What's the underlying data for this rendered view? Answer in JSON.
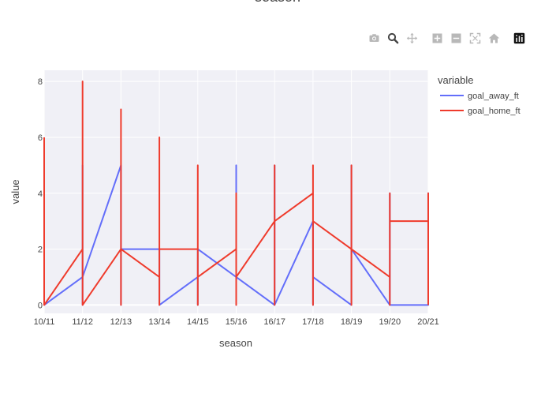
{
  "modebar": {
    "buttons": [
      {
        "name": "camera-icon",
        "active": false
      },
      {
        "name": "zoom-icon",
        "active": true
      },
      {
        "name": "pan-icon",
        "active": false
      },
      {
        "name": "zoom-in-icon",
        "active": false
      },
      {
        "name": "zoom-out-icon",
        "active": false
      },
      {
        "name": "autoscale-icon",
        "active": false
      },
      {
        "name": "reset-axes-icon",
        "active": false
      },
      {
        "name": "plotly-logo-icon",
        "active": false
      }
    ]
  },
  "chart_data": {
    "type": "line",
    "title": "season",
    "xlabel": "season",
    "ylabel": "value",
    "categories": [
      "10/11",
      "11/12",
      "12/13",
      "13/14",
      "14/15",
      "15/16",
      "16/17",
      "17/18",
      "18/19",
      "19/20",
      "20/21"
    ],
    "yticks": [
      0,
      2,
      4,
      6,
      8
    ],
    "ylim": [
      -0.3,
      8.4
    ],
    "grid": true,
    "legend": {
      "title": "variable",
      "placement": "top-right"
    },
    "series": [
      {
        "name": "goal_away_ft",
        "color": "#636efa",
        "points": [
          [
            0,
            0
          ],
          [
            1,
            1
          ],
          [
            1,
            5
          ],
          [
            1,
            0
          ],
          [
            1,
            1
          ],
          [
            2,
            5
          ],
          [
            2,
            0
          ],
          [
            2,
            2
          ],
          [
            3,
            2
          ],
          [
            3,
            0
          ],
          [
            4,
            1
          ],
          [
            4,
            2
          ],
          [
            4,
            0
          ],
          [
            4,
            2
          ],
          [
            5,
            1
          ],
          [
            5,
            5
          ],
          [
            5,
            0
          ],
          [
            5,
            1
          ],
          [
            6,
            0
          ],
          [
            6,
            5
          ],
          [
            6,
            0
          ],
          [
            7,
            3
          ],
          [
            7,
            0
          ],
          [
            7,
            1
          ],
          [
            8,
            0
          ],
          [
            8,
            5
          ],
          [
            8,
            0
          ],
          [
            8,
            2
          ],
          [
            9,
            0
          ],
          [
            9,
            4
          ],
          [
            9,
            0
          ],
          [
            10,
            0
          ],
          [
            10,
            4
          ],
          [
            10,
            0
          ]
        ]
      },
      {
        "name": "goal_home_ft",
        "color": "#ef3b2c",
        "points": [
          [
            0,
            6
          ],
          [
            0,
            0
          ],
          [
            1,
            2
          ],
          [
            1,
            8
          ],
          [
            1,
            0
          ],
          [
            2,
            2
          ],
          [
            2,
            7
          ],
          [
            2,
            0
          ],
          [
            2,
            2
          ],
          [
            3,
            1
          ],
          [
            3,
            6
          ],
          [
            3,
            0
          ],
          [
            3,
            2
          ],
          [
            4,
            2
          ],
          [
            4,
            5
          ],
          [
            4,
            0
          ],
          [
            4,
            1
          ],
          [
            5,
            2
          ],
          [
            5,
            4
          ],
          [
            5,
            0
          ],
          [
            5,
            1
          ],
          [
            6,
            3
          ],
          [
            6,
            5
          ],
          [
            6,
            0
          ],
          [
            6,
            3
          ],
          [
            7,
            4
          ],
          [
            7,
            5
          ],
          [
            7,
            0
          ],
          [
            7,
            3
          ],
          [
            8,
            2
          ],
          [
            8,
            5
          ],
          [
            8,
            0
          ],
          [
            8,
            2
          ],
          [
            9,
            1
          ],
          [
            9,
            4
          ],
          [
            9,
            0
          ],
          [
            9,
            3
          ],
          [
            10,
            3
          ],
          [
            10,
            4
          ],
          [
            10,
            0
          ]
        ]
      }
    ]
  }
}
